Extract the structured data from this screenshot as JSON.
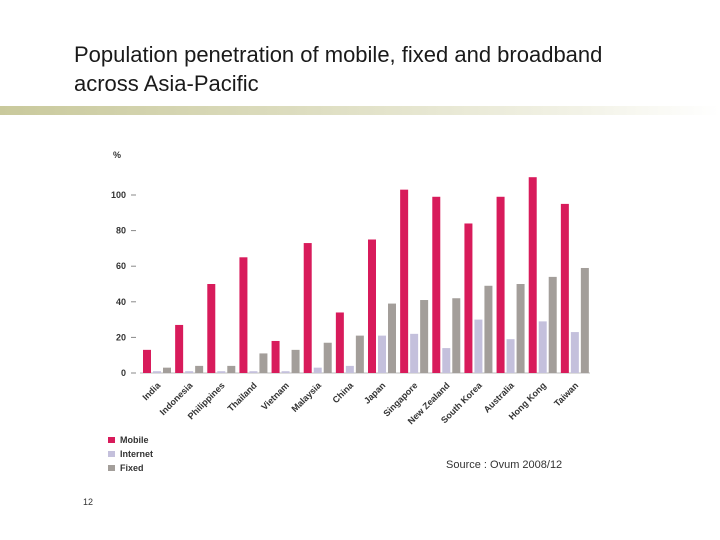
{
  "slide": {
    "title_line1": "Population penetration of mobile, fixed and broadband",
    "title_line2": "across Asia-Pacific",
    "source": "Source : Ovum 2008/12",
    "page_number": "12"
  },
  "chart_data": {
    "type": "bar",
    "title": "",
    "ylabel": "%",
    "xlabel": "",
    "ylim": [
      0,
      110
    ],
    "yticks": [
      0,
      20,
      40,
      60,
      80,
      100
    ],
    "categories": [
      "India",
      "Indonesia",
      "Philippines",
      "Thailand",
      "Vietnam",
      "Malaysia",
      "China",
      "Japan",
      "Singapore",
      "New Zealand",
      "South Korea",
      "Australia",
      "Hong Kong",
      "Taiwan"
    ],
    "series": [
      {
        "name": "Mobile",
        "color": "#d81b5b",
        "values": [
          13,
          27,
          50,
          65,
          18,
          73,
          34,
          75,
          103,
          99,
          84,
          99,
          110,
          95
        ]
      },
      {
        "name": "Internet",
        "color": "#c4c0dc",
        "values": [
          1,
          1,
          1,
          1,
          1,
          3,
          4,
          21,
          22,
          14,
          30,
          19,
          29,
          23
        ]
      },
      {
        "name": "Fixed",
        "color": "#a39e9a",
        "values": [
          3,
          4,
          4,
          11,
          13,
          17,
          21,
          39,
          41,
          42,
          49,
          50,
          54,
          59
        ]
      }
    ],
    "legend_position": "bottom-left",
    "grid": false
  }
}
